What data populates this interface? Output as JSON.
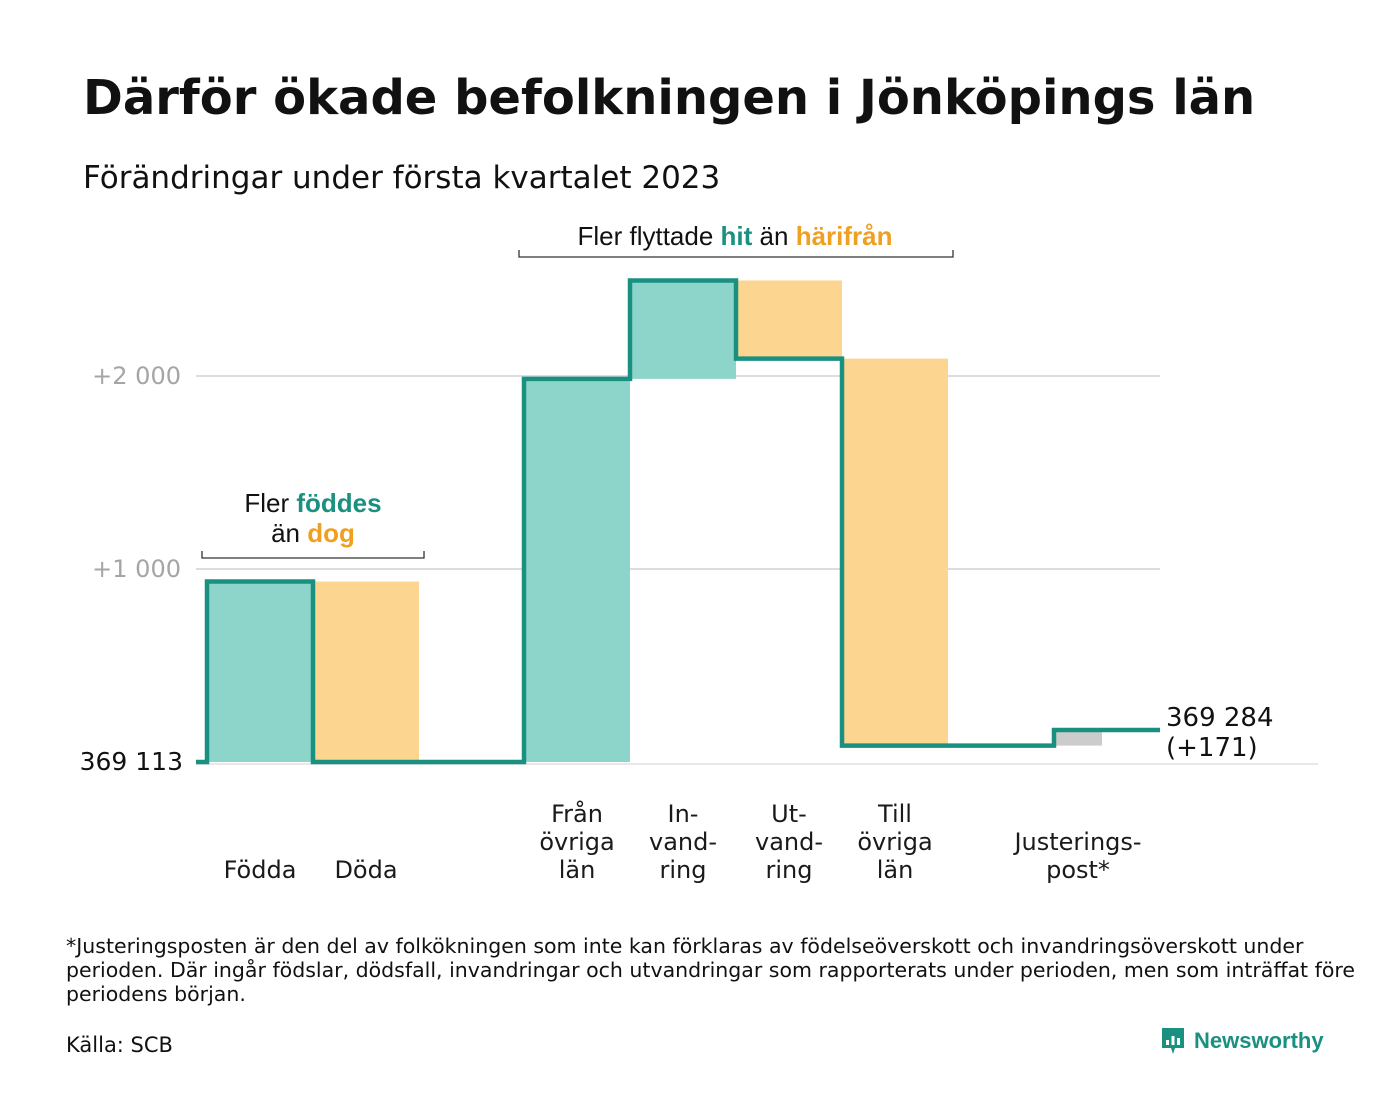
{
  "title": "Därför ökade befolkningen i Jönköpings län",
  "subtitle": "Förändringar under första kvartalet 2023",
  "chart_data": {
    "type": "waterfall",
    "start_value": 369113,
    "start_label": "369 113",
    "end_label_value": "369 284",
    "end_label_change": "(+171)",
    "y_ticks": [
      {
        "value": 1000,
        "label": "+1 000"
      },
      {
        "value": 2000,
        "label": "+2 000"
      }
    ],
    "ylim": [
      -100,
      2500
    ],
    "steps": [
      {
        "label_lines": [
          "Födda"
        ],
        "delta": 935,
        "kind": "increase"
      },
      {
        "label_lines": [
          "Döda"
        ],
        "delta": -935,
        "kind": "decrease"
      },
      {
        "label_lines": [
          "Från",
          "övriga",
          "län"
        ],
        "delta": 1985,
        "kind": "increase"
      },
      {
        "label_lines": [
          "In-",
          "vand-",
          "ring"
        ],
        "delta": 510,
        "kind": "increase"
      },
      {
        "label_lines": [
          "Ut-",
          "vand-",
          "ring"
        ],
        "delta": -405,
        "kind": "decrease"
      },
      {
        "label_lines": [
          "Till",
          "övriga",
          "län"
        ],
        "delta": -2005,
        "kind": "decrease"
      },
      {
        "label_lines": [
          "Justerings-",
          "post*"
        ],
        "delta": 81,
        "kind": "adjustment"
      }
    ],
    "annotations": [
      {
        "parts": [
          {
            "text": "Fler ",
            "style": "plain"
          },
          {
            "text": "föddes",
            "style": "teal"
          }
        ],
        "parts2": [
          {
            "text": "än ",
            "style": "plain"
          },
          {
            "text": "dog",
            "style": "orange"
          }
        ]
      },
      {
        "parts": [
          {
            "text": "Fler flyttade ",
            "style": "plain"
          },
          {
            "text": "hit",
            "style": "teal"
          },
          {
            "text": " än ",
            "style": "plain"
          },
          {
            "text": "härifrån",
            "style": "orange"
          }
        ]
      }
    ],
    "colors": {
      "increase": "#8dd5cb",
      "decrease": "#fcd690",
      "adjustment": "#cccccc",
      "line": "#1a9080",
      "teal_text": "#1a9080",
      "orange_text": "#f0a020",
      "grid": "#dddddd"
    }
  },
  "footnote": "*Justeringsposten är den del av folkökningen som inte kan förklaras av födelseöverskott och invandringsöverskott under perioden. Där ingår födslar, dödsfall, invandringar och utvandringar som rapporterats under perioden, men som inträffat före periodens början.",
  "source": "Källa: SCB",
  "brand": {
    "name": "Newsworthy",
    "icon": "newsworthy-logo-icon"
  }
}
